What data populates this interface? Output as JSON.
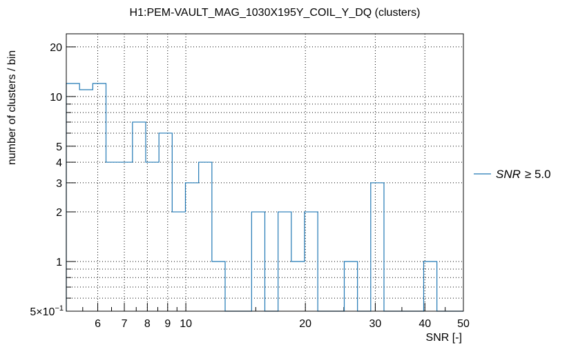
{
  "chart_data": {
    "type": "histogram",
    "title": "H1:PEM-VAULT_MAG_1030X195Y_COIL_Y_DQ (clusters)",
    "xlabel": "SNR [-]",
    "ylabel": "number of clusters / bin",
    "x_scale": "log",
    "y_scale": "log",
    "xlim": [
      5.0,
      50.0
    ],
    "ylim": [
      0.5,
      24
    ],
    "grid": true,
    "x_ticks": [
      {
        "value": 6,
        "label": "6"
      },
      {
        "value": 7,
        "label": "7"
      },
      {
        "value": 8,
        "label": "8"
      },
      {
        "value": 9,
        "label": "9"
      },
      {
        "value": 10,
        "label": "10"
      },
      {
        "value": 20,
        "label": "20"
      },
      {
        "value": 30,
        "label": "30"
      },
      {
        "value": 40,
        "label": "40"
      },
      {
        "value": 50,
        "label": "50"
      }
    ],
    "y_ticks": [
      {
        "value": 0.5,
        "label": "5×10",
        "exp": "−1"
      },
      {
        "value": 1,
        "label": "1"
      },
      {
        "value": 2,
        "label": "2"
      },
      {
        "value": 3,
        "label": "3"
      },
      {
        "value": 4,
        "label": "4"
      },
      {
        "value": 5,
        "label": "5"
      },
      {
        "value": 10,
        "label": "10"
      },
      {
        "value": 20,
        "label": "20"
      }
    ],
    "series": [
      {
        "legend_prefix": "SNR",
        "legend_suffix": "≥ 5.0",
        "color": "#1f77b4",
        "bin_lo": 5.0,
        "bin_hi": 50.0,
        "values": [
          12,
          11,
          12,
          4,
          4,
          7,
          4,
          6,
          2,
          3,
          4,
          1,
          0,
          0,
          2,
          0,
          2,
          1,
          2,
          0,
          0,
          1,
          0,
          3,
          0,
          0,
          0,
          1,
          0,
          0
        ]
      }
    ],
    "legend_position": "right"
  }
}
